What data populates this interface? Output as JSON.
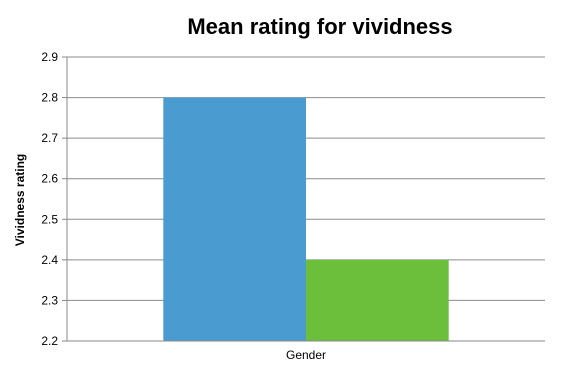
{
  "chart_data": {
    "type": "bar",
    "title": "Mean rating for vividness",
    "xlabel": "",
    "ylabel": "Vividness rating",
    "categories": [
      "Gender"
    ],
    "series": [
      {
        "values": [
          2.8
        ],
        "color": "#4a9bd0"
      },
      {
        "values": [
          2.4
        ],
        "color": "#6cbf3a"
      }
    ],
    "ylim": [
      2.2,
      2.9
    ],
    "yticks": [
      "2.2",
      "2.3",
      "2.4",
      "2.5",
      "2.6",
      "2.7",
      "2.8",
      "2.9"
    ],
    "grid": true,
    "legend": "none"
  }
}
